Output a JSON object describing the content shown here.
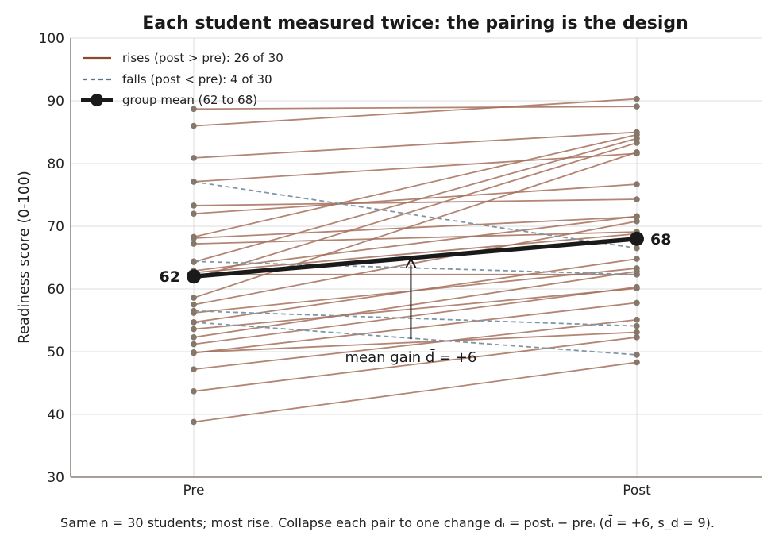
{
  "chart_data": {
    "type": "line",
    "title": "Each student measured twice: the pairing is the design",
    "xlabel": "",
    "ylabel": "Readiness score (0-100)",
    "categories": [
      "Pre",
      "Post"
    ],
    "ylim": [
      30,
      100
    ],
    "yticks": [
      30,
      40,
      50,
      60,
      70,
      80,
      90,
      100
    ],
    "grid": true,
    "legend_position": "top-left",
    "legend": [
      {
        "label": "rises (post > pre): 26 of 30",
        "style": "solid",
        "color": "#8B4A2E"
      },
      {
        "label": "falls (post < pre): 4 of 30",
        "style": "dashed",
        "color": "#5E7283"
      },
      {
        "label": "group mean (62 to 68)",
        "style": "bold-marker",
        "color": "#1a1a1a"
      }
    ],
    "colors": {
      "rise": "#A4705C",
      "fall": "#7F96A6",
      "point": "#857769",
      "mean": "#1a1a1a"
    },
    "pairs_rise": [
      [
        88.7,
        89.1
      ],
      [
        86.0,
        90.3
      ],
      [
        80.9,
        85.0
      ],
      [
        77.1,
        81.6
      ],
      [
        73.3,
        74.3
      ],
      [
        72.0,
        76.7
      ],
      [
        68.3,
        84.6
      ],
      [
        68.1,
        71.5
      ],
      [
        67.2,
        69.1
      ],
      [
        64.3,
        84.0
      ],
      [
        62.9,
        71.6
      ],
      [
        62.6,
        68.8
      ],
      [
        62.3,
        62.3
      ],
      [
        61.7,
        83.3
      ],
      [
        58.6,
        81.8
      ],
      [
        57.5,
        70.8
      ],
      [
        56.2,
        63.3
      ],
      [
        54.7,
        64.8
      ],
      [
        53.6,
        60.1
      ],
      [
        52.3,
        62.8
      ],
      [
        51.2,
        60.3
      ],
      [
        49.9,
        53.1
      ],
      [
        49.8,
        57.8
      ],
      [
        47.2,
        55.1
      ],
      [
        43.7,
        52.3
      ],
      [
        38.8,
        48.3
      ]
    ],
    "pairs_fall": [
      [
        77.1,
        66.5
      ],
      [
        64.4,
        62.3
      ],
      [
        56.5,
        54.1
      ],
      [
        54.7,
        49.5
      ]
    ],
    "mean": {
      "pre": 62,
      "post": 68,
      "pre_label": "62",
      "post_label": "68"
    },
    "annotation": {
      "text": "mean gain d̄ = +6",
      "x": 0.49,
      "y_from": 52.0,
      "y_to": 64.8
    }
  },
  "caption": "Same n = 30 students; most rise. Collapse each pair to one change dᵢ = postᵢ − preᵢ (d̄ = +6, s_d = 9)."
}
